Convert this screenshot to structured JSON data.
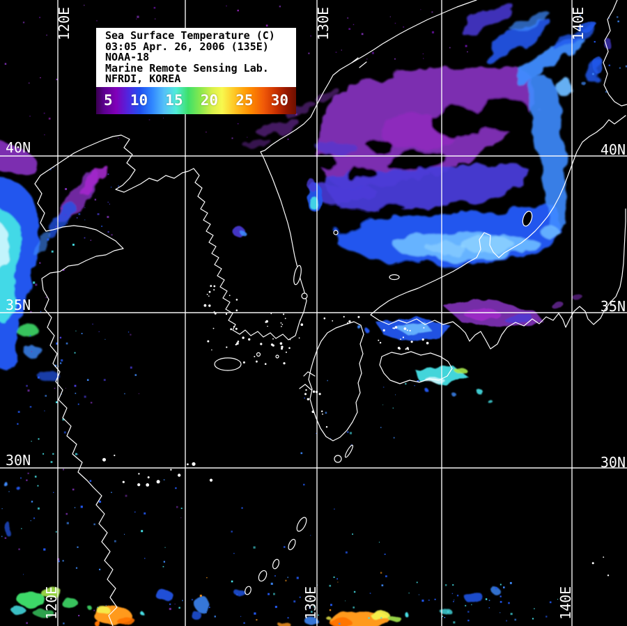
{
  "header": {
    "title": "Sea Surface Temperature (C)",
    "datetime": "03:05 Apr. 26, 2006 (135E)",
    "satellite": "NOAA-18",
    "org_line1": "Marine Remote Sensing Lab.",
    "org_line2": "NFRDI, KOREA"
  },
  "legend": {
    "unit_c_min": 5,
    "unit_c_max": 30,
    "ticks": [
      "5",
      "10",
      "15",
      "20",
      "25",
      "30"
    ],
    "gradient_stops": [
      {
        "c": "#3a0050",
        "p": 0
      },
      {
        "c": "#5c0090",
        "p": 4
      },
      {
        "c": "#8000b8",
        "p": 10
      },
      {
        "c": "#5026e0",
        "p": 16
      },
      {
        "c": "#2050f0",
        "p": 22
      },
      {
        "c": "#2f86ff",
        "p": 28
      },
      {
        "c": "#55c0f8",
        "p": 34
      },
      {
        "c": "#50ecd8",
        "p": 40
      },
      {
        "c": "#3ee06a",
        "p": 46
      },
      {
        "c": "#86e84e",
        "p": 52
      },
      {
        "c": "#d8f04a",
        "p": 58
      },
      {
        "c": "#f8f84e",
        "p": 63
      },
      {
        "c": "#ffc020",
        "p": 70
      },
      {
        "c": "#ff8c00",
        "p": 77
      },
      {
        "c": "#f05808",
        "p": 84
      },
      {
        "c": "#c83000",
        "p": 90
      },
      {
        "c": "#981800",
        "p": 95
      },
      {
        "c": "#6e1000",
        "p": 100
      }
    ]
  },
  "grid": {
    "lon_labels": [
      "120E",
      "130E",
      "140E"
    ],
    "lat_labels": [
      "40N",
      "35N",
      "30N"
    ]
  },
  "map": {
    "colors": {
      "background": "#000000",
      "coastline": "#ffffff",
      "grid": "#ffffff",
      "label_text": "#ffffff"
    },
    "palette": {
      "deep_purple": "#5c1090",
      "purple": "#7b2fb0",
      "magenta": "#a428cc",
      "violet_blue": "#4a3bd8",
      "blue": "#2257ee",
      "bright_blue": "#3f8cff",
      "light_blue": "#6ab8ff",
      "pale_blue": "#8fd2ff",
      "cyan": "#46e0e6",
      "pale_cyan": "#d8f8ff",
      "green": "#3ed867",
      "yellow_green": "#a6e84e",
      "yellow": "#f5f24d",
      "orange": "#ff9a1e",
      "deep_orange": "#ff7300",
      "dark_red": "#7a1400"
    }
  }
}
